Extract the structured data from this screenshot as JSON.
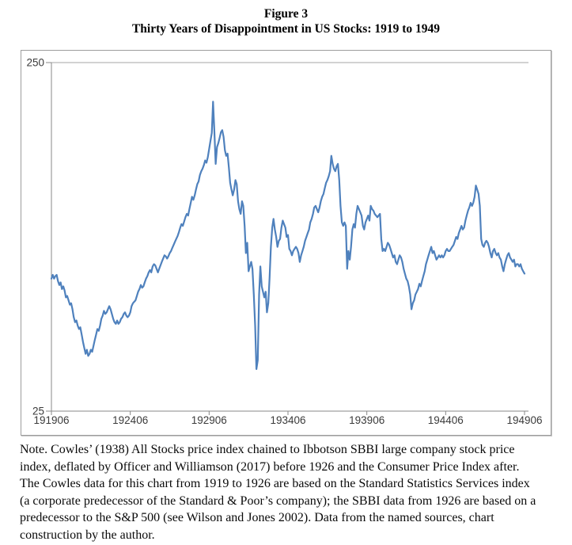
{
  "figure": {
    "label": "Figure 3",
    "title": "Thirty Years of Disappointment in US Stocks: 1919 to 1949"
  },
  "note": "Note. Cowles’ (1938) All Stocks price index chained to Ibbotson SBBI large company stock price index, deflated by Officer and Williamson (2017) before 1926 and the Consumer Price Index after.  The Cowles data for this chart from 1919 to 1926 are based on the Standard Statistics Services index (a corporate predecessor of the Standard & Poor’s company); the SBBI data from 1926 are based on a predecessor to the S&P 500 (see Wilson and Jones 2002). Data from the named sources, chart construction by the author.",
  "chart_data": {
    "type": "line",
    "title": "",
    "xlabel": "",
    "ylabel": "",
    "x_start": "1919-06",
    "x_end": "1949-06",
    "frequency": "monthly",
    "x_tick_labels": [
      "191906",
      "192406",
      "192906",
      "193406",
      "193906",
      "194406",
      "194906"
    ],
    "y_scale": "log",
    "ylim": [
      25,
      250
    ],
    "y_ticks": [
      25,
      250
    ],
    "grid": "top-gridline-only",
    "legend": "none",
    "line_color": "#4F81BD",
    "axis_color": "#888888",
    "values": [
      60,
      61.5,
      60,
      61,
      61.5,
      59,
      57.5,
      58.5,
      56,
      57,
      55.5,
      53,
      53.5,
      52,
      50.5,
      51,
      49,
      46.5,
      45,
      45.5,
      44,
      43,
      43.5,
      41.5,
      39.5,
      38,
      36.5,
      37.5,
      36,
      36.5,
      37.5,
      37,
      38.5,
      40,
      41.5,
      43,
      42.5,
      44,
      46,
      47,
      48.5,
      47.5,
      48,
      49,
      50,
      49,
      47.5,
      46,
      45,
      44.5,
      45.5,
      44.5,
      45,
      46,
      46.5,
      47.5,
      48,
      47,
      46.5,
      47,
      48,
      50,
      51,
      51.5,
      52,
      53.5,
      55,
      56,
      57.5,
      56.5,
      57,
      58.5,
      60,
      61,
      62.5,
      63.5,
      62.5,
      65,
      66,
      65.5,
      64,
      62.5,
      64,
      65.5,
      67,
      68.5,
      70,
      69.5,
      68.5,
      69.5,
      71,
      72,
      73.5,
      75,
      76.5,
      78,
      79.5,
      81.5,
      84,
      86,
      85,
      87.5,
      90,
      92,
      91,
      95,
      99,
      103,
      101,
      104,
      108,
      112,
      114,
      119,
      122,
      124,
      127,
      131,
      129,
      134,
      141,
      149,
      157,
      193,
      158,
      128,
      143,
      147,
      152,
      158,
      160,
      153,
      140,
      135,
      137,
      125,
      113,
      108,
      104,
      108,
      115,
      112,
      100,
      95,
      92,
      100,
      97,
      85,
      71,
      76,
      63,
      65,
      67,
      64,
      54,
      44,
      33,
      35,
      54,
      65,
      57,
      55,
      53,
      55,
      48,
      51,
      60,
      74,
      84,
      89,
      83,
      79,
      74,
      77,
      78,
      84,
      88,
      86,
      84,
      79,
      80,
      73,
      72,
      70,
      72,
      73,
      74,
      73,
      71,
      67,
      70,
      72,
      74,
      77,
      79,
      81,
      83,
      87,
      89,
      92,
      96,
      97,
      95,
      93,
      96,
      100,
      103,
      105,
      109,
      113,
      115,
      118,
      122,
      135,
      128,
      124,
      122,
      126,
      128,
      115,
      97,
      87,
      85,
      87,
      85,
      64,
      72,
      68,
      74,
      83,
      86,
      84,
      92,
      97,
      95,
      93,
      91,
      85,
      83,
      87,
      89,
      91,
      88,
      97,
      95,
      94,
      92,
      91,
      90,
      91,
      92,
      78,
      72,
      73,
      72,
      74,
      76,
      75,
      73,
      71,
      69,
      70,
      67,
      66,
      68,
      70,
      69,
      67,
      64,
      62,
      60,
      59,
      57,
      54,
      49,
      51,
      52,
      54,
      55,
      56,
      58,
      57,
      59,
      61,
      63,
      66,
      68,
      70,
      72,
      74,
      71,
      72,
      70,
      68,
      69,
      70,
      69,
      70,
      69,
      70,
      72,
      73,
      72,
      72,
      73,
      74,
      75,
      77,
      79,
      78,
      81,
      83,
      85,
      83,
      84,
      88,
      91,
      94,
      96,
      99,
      97,
      99,
      103,
      111,
      108,
      105,
      97,
      78,
      75,
      74,
      76,
      77,
      76,
      74,
      71,
      69,
      72,
      73,
      71,
      70,
      71,
      69,
      68,
      65,
      63,
      66,
      68,
      70,
      71,
      69,
      68,
      67,
      68,
      65,
      66,
      66,
      65,
      66,
      64,
      63,
      62
    ]
  }
}
